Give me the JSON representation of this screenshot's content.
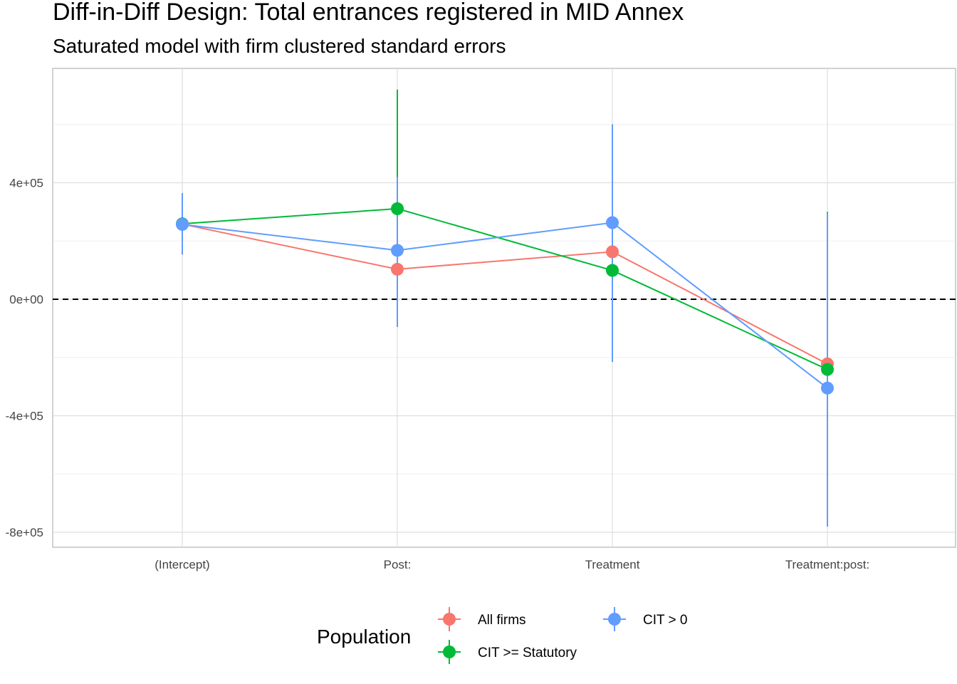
{
  "chart_data": {
    "type": "line",
    "title": "Diff-in-Diff Design: Total entrances registered in MID Annex",
    "subtitle": "Saturated model with firm clustered standard errors",
    "xlabel": "",
    "ylabel": "",
    "categories": [
      "(Intercept)",
      "Post:",
      "Treatment",
      "Treatment:post:"
    ],
    "ylim": [
      -850000,
      790000
    ],
    "y_ticks": [
      400000,
      0,
      -400000,
      -800000
    ],
    "y_tick_labels": [
      "4e+05",
      "0e+00",
      "-4e+05",
      "-8e+05"
    ],
    "reference_line": 0,
    "grid": true,
    "legend": {
      "title": "Population",
      "position": "bottom"
    },
    "series": [
      {
        "name": "All firms",
        "color": "#F8766D",
        "values": [
          258000,
          103000,
          163000,
          -222000
        ],
        "lower": [
          153000,
          -90000,
          -210000,
          -780000
        ],
        "upper": [
          362000,
          420000,
          600000,
          296000
        ]
      },
      {
        "name": "CIT >= Statutory",
        "color": "#00BA38",
        "values": [
          259000,
          311000,
          99000,
          -241000
        ],
        "lower": [
          155000,
          -95000,
          -215000,
          -780000
        ],
        "upper": [
          364000,
          720000,
          600000,
          300000
        ]
      },
      {
        "name": "CIT > 0",
        "color": "#619CFF",
        "values": [
          257000,
          168000,
          263000,
          -305000
        ],
        "lower": [
          155000,
          -95000,
          -215000,
          -780000
        ],
        "upper": [
          362000,
          420000,
          600000,
          296000
        ]
      }
    ]
  }
}
